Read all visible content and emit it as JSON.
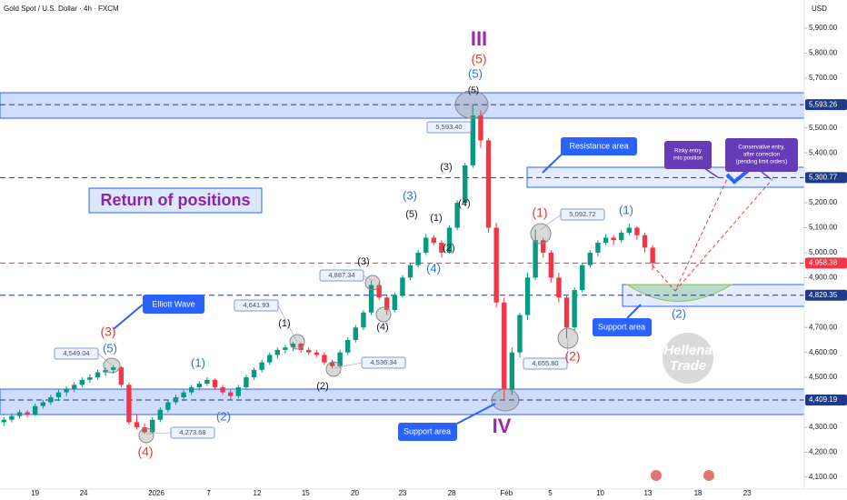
{
  "chart_data": {
    "type": "candlestick",
    "title": "Gold Spot / U.S. Dollar · 4h · FXCM",
    "currency": "USD",
    "up_color": "#089981",
    "down_color": "#f23645",
    "ylim": [
      4052,
      6013
    ],
    "xlim": [
      -0.5,
      102.4
    ],
    "yticks": [
      {
        "value": 5900,
        "label": "5,900.00"
      },
      {
        "value": 5800,
        "label": "5,800.00"
      },
      {
        "value": 5700,
        "label": "5,700.00"
      },
      {
        "value": 5500,
        "label": "5,500.00"
      },
      {
        "value": 5400,
        "label": "5,400.00"
      },
      {
        "value": 5200,
        "label": "5,200.00"
      },
      {
        "value": 5100,
        "label": "5,100.00"
      },
      {
        "value": 5000,
        "label": "5,000.00"
      },
      {
        "value": 4900,
        "label": "4,900.00"
      },
      {
        "value": 4700,
        "label": "4,700.00"
      },
      {
        "value": 4600,
        "label": "4,600.00"
      },
      {
        "value": 4500,
        "label": "4,500.00"
      },
      {
        "value": 4300,
        "label": "4,300.00"
      },
      {
        "value": 4200,
        "label": "4,200.00"
      },
      {
        "value": 4100,
        "label": "4,100.00"
      }
    ],
    "xticks": [
      {
        "value": 4.0,
        "label": "19"
      },
      {
        "value": 10.2,
        "label": "24"
      },
      {
        "value": 19.5,
        "label": "2026"
      },
      {
        "value": 26.2,
        "label": "7"
      },
      {
        "value": 32.4,
        "label": "12"
      },
      {
        "value": 38.6,
        "label": "15"
      },
      {
        "value": 44.9,
        "label": "20"
      },
      {
        "value": 51.0,
        "label": "23"
      },
      {
        "value": 57.3,
        "label": "28"
      },
      {
        "value": 64.3,
        "label": "Feb"
      },
      {
        "value": 69.9,
        "label": "5"
      },
      {
        "value": 76.3,
        "label": "10"
      },
      {
        "value": 82.4,
        "label": "13"
      },
      {
        "value": 88.8,
        "label": "18"
      },
      {
        "value": 95.1,
        "label": "23"
      }
    ],
    "ohlc": [
      [
        4320,
        4340,
        4305,
        4330
      ],
      [
        4330,
        4355,
        4320,
        4345
      ],
      [
        4345,
        4370,
        4335,
        4360
      ],
      [
        4360,
        4368,
        4340,
        4350
      ],
      [
        4350,
        4395,
        4345,
        4385
      ],
      [
        4385,
        4410,
        4375,
        4400
      ],
      [
        4400,
        4430,
        4390,
        4420
      ],
      [
        4420,
        4450,
        4405,
        4440
      ],
      [
        4440,
        4465,
        4425,
        4455
      ],
      [
        4455,
        4480,
        4440,
        4470
      ],
      [
        4470,
        4500,
        4460,
        4490
      ],
      [
        4490,
        4512,
        4478,
        4500
      ],
      [
        4500,
        4530,
        4490,
        4520
      ],
      [
        4520,
        4540,
        4505,
        4530
      ],
      [
        4530,
        4549,
        4515,
        4540
      ],
      [
        4540,
        4545,
        4460,
        4470
      ],
      [
        4470,
        4480,
        4310,
        4320
      ],
      [
        4320,
        4350,
        4290,
        4300
      ],
      [
        4300,
        4315,
        4274,
        4280
      ],
      [
        4280,
        4340,
        4275,
        4330
      ],
      [
        4330,
        4380,
        4320,
        4370
      ],
      [
        4370,
        4410,
        4360,
        4400
      ],
      [
        4400,
        4430,
        4390,
        4420
      ],
      [
        4420,
        4450,
        4405,
        4440
      ],
      [
        4440,
        4470,
        4430,
        4460
      ],
      [
        4460,
        4485,
        4448,
        4475
      ],
      [
        4475,
        4500,
        4465,
        4490
      ],
      [
        4490,
        4495,
        4450,
        4460
      ],
      [
        4460,
        4470,
        4430,
        4440
      ],
      [
        4440,
        4450,
        4410,
        4425
      ],
      [
        4425,
        4470,
        4415,
        4460
      ],
      [
        4460,
        4510,
        4450,
        4500
      ],
      [
        4500,
        4540,
        4490,
        4530
      ],
      [
        4530,
        4570,
        4520,
        4560
      ],
      [
        4560,
        4600,
        4550,
        4590
      ],
      [
        4590,
        4620,
        4575,
        4610
      ],
      [
        4610,
        4630,
        4595,
        4620
      ],
      [
        4620,
        4642,
        4605,
        4635
      ],
      [
        4635,
        4640,
        4600,
        4610
      ],
      [
        4610,
        4620,
        4590,
        4600
      ],
      [
        4600,
        4610,
        4580,
        4590
      ],
      [
        4590,
        4600,
        4550,
        4560
      ],
      [
        4560,
        4570,
        4536,
        4545
      ],
      [
        4545,
        4610,
        4540,
        4600
      ],
      [
        4600,
        4660,
        4590,
        4650
      ],
      [
        4650,
        4710,
        4640,
        4700
      ],
      [
        4700,
        4770,
        4690,
        4760
      ],
      [
        4760,
        4887,
        4750,
        4870
      ],
      [
        4870,
        4880,
        4810,
        4820
      ],
      [
        4820,
        4830,
        4750,
        4770
      ],
      [
        4770,
        4840,
        4760,
        4830
      ],
      [
        4830,
        4910,
        4820,
        4900
      ],
      [
        4900,
        4960,
        4890,
        4950
      ],
      [
        4950,
        5010,
        4940,
        5000
      ],
      [
        5000,
        5075,
        4990,
        5060
      ],
      [
        5060,
        5070,
        5030,
        5040
      ],
      [
        5040,
        5050,
        4980,
        5000
      ],
      [
        5000,
        5110,
        4995,
        5100
      ],
      [
        5100,
        5210,
        5090,
        5200
      ],
      [
        5200,
        5360,
        5190,
        5350
      ],
      [
        5350,
        5593,
        5340,
        5550
      ],
      [
        5550,
        5570,
        5420,
        5450
      ],
      [
        5450,
        5460,
        5080,
        5100
      ],
      [
        5100,
        5120,
        4780,
        4800
      ],
      [
        4800,
        4820,
        4409,
        4450
      ],
      [
        4450,
        4620,
        4430,
        4600
      ],
      [
        4600,
        4760,
        4580,
        4750
      ],
      [
        4750,
        4920,
        4730,
        4900
      ],
      [
        4900,
        5093,
        4890,
        5050
      ],
      [
        5050,
        5060,
        4980,
        5000
      ],
      [
        5000,
        5010,
        4880,
        4900
      ],
      [
        4900,
        4920,
        4800,
        4820
      ],
      [
        4820,
        4830,
        4656,
        4700
      ],
      [
        4700,
        4860,
        4690,
        4850
      ],
      [
        4850,
        4960,
        4840,
        4950
      ],
      [
        4950,
        5010,
        4940,
        5000
      ],
      [
        5000,
        5050,
        4985,
        5040
      ],
      [
        5040,
        5075,
        5030,
        5060
      ],
      [
        5060,
        5070,
        5030,
        5050
      ],
      [
        5050,
        5090,
        5040,
        5080
      ],
      [
        5080,
        5115,
        5070,
        5100
      ],
      [
        5100,
        5105,
        5050,
        5070
      ],
      [
        5070,
        5080,
        5000,
        5020
      ],
      [
        5020,
        5030,
        4930,
        4958.38
      ]
    ],
    "levels": [
      {
        "value": 5593.26,
        "label": "5,593.26",
        "color": "#1e3a8a"
      },
      {
        "value": 5300.77,
        "label": "5,300.77",
        "color": "#1e3a8a"
      },
      {
        "value": 4958.38,
        "label": "4,958.38",
        "color": "#f23645"
      },
      {
        "value": 4829.35,
        "label": "4,829.35",
        "color": "#1e3a8a"
      },
      {
        "value": 4409.19,
        "label": "4,409.19",
        "color": "#1e3a8a"
      }
    ],
    "price_labels": [
      {
        "value": 5593.4,
        "label": "5,593.40"
      },
      {
        "value": 5092.72,
        "label": "5,092.72"
      },
      {
        "value": 4887.34,
        "label": "4,887.34"
      },
      {
        "value": 4641.93,
        "label": "4,641.93"
      },
      {
        "value": 4549.04,
        "label": "4,549.04"
      },
      {
        "value": 4536.34,
        "label": "4,536.34"
      },
      {
        "value": 4655.8,
        "label": "4,655.80"
      },
      {
        "value": 4273.68,
        "label": "4,273.68"
      }
    ],
    "waves": [
      {
        "text": "III",
        "color": "#9c27b0"
      },
      {
        "text": "(5)",
        "color": "#e53935"
      },
      {
        "text": "(5)",
        "color": "#2f6fd6"
      },
      {
        "text": "(5)",
        "color": "#131722"
      },
      {
        "text": "(3)",
        "color": "#131722"
      },
      {
        "text": "(4)",
        "color": "#131722"
      },
      {
        "text": "(1)",
        "color": "#131722"
      },
      {
        "text": "(2)",
        "color": "#131722"
      },
      {
        "text": "(5)",
        "color": "#131722"
      },
      {
        "text": "(3)",
        "color": "#2f6fd6"
      },
      {
        "text": "(4)",
        "color": "#2f6fd6"
      },
      {
        "text": "(3)",
        "color": "#131722"
      },
      {
        "text": "(4)",
        "color": "#131722"
      },
      {
        "text": "(1)",
        "color": "#131722"
      },
      {
        "text": "(2)",
        "color": "#131722"
      },
      {
        "text": "(1)",
        "color": "#2f6fd6"
      },
      {
        "text": "(2)",
        "color": "#2f6fd6"
      },
      {
        "text": "(3)",
        "color": "#e53935"
      },
      {
        "text": "(5)",
        "color": "#2f6fd6"
      },
      {
        "text": "(4)",
        "color": "#e53935"
      },
      {
        "text": "IV",
        "color": "#9c27b0"
      },
      {
        "text": "(1)",
        "color": "#e53935"
      },
      {
        "text": "(2)",
        "color": "#e53935"
      },
      {
        "text": "(1)",
        "color": "#2f6fd6"
      },
      {
        "text": "(2)",
        "color": "#2f6fd6"
      }
    ],
    "heading": "Return of positions",
    "callouts": {
      "elliott": "Elliott Wave",
      "resistance": "Resistance area",
      "support_right": "Support area",
      "support_left": "Support area"
    },
    "risky": [
      "Risky entry",
      "into position"
    ],
    "conservative": [
      "Conservative entry,",
      "after correction",
      "(pending limit orders)"
    ],
    "watermark": [
      "Hellena",
      "Trade"
    ]
  }
}
